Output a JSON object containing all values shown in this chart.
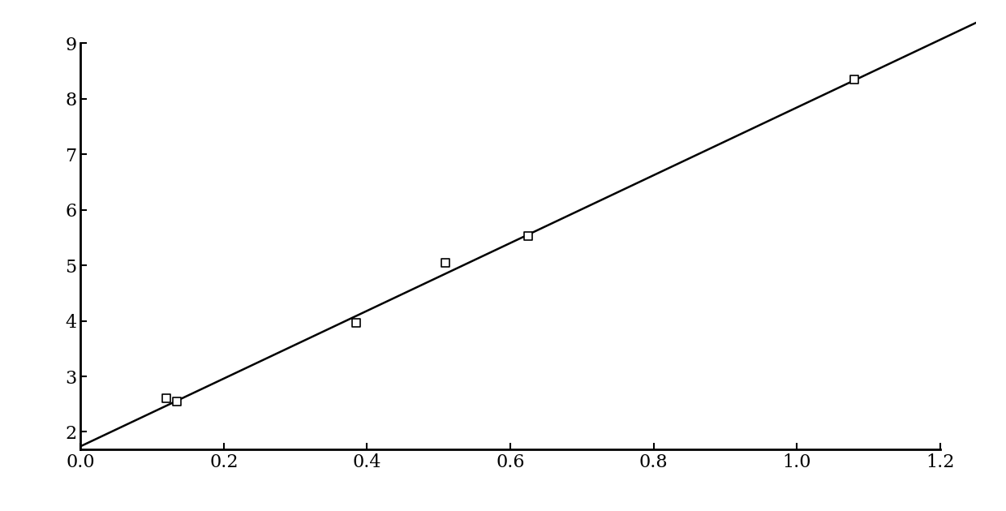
{
  "data_points_x": [
    0.12,
    0.135,
    0.385,
    0.51,
    0.625,
    1.08
  ],
  "data_points_y": [
    2.6,
    2.55,
    3.96,
    5.05,
    5.52,
    8.35
  ],
  "line_slope": 6.1,
  "line_intercept": 1.74,
  "xlim": [
    0.0,
    1.25
  ],
  "ylim": [
    1.68,
    9.5
  ],
  "xticks": [
    0.0,
    0.2,
    0.4,
    0.6,
    0.8,
    1.0,
    1.2
  ],
  "yticks": [
    2,
    3,
    4,
    5,
    6,
    7,
    8,
    9
  ],
  "xtick_labels": [
    "0.0",
    "0.2",
    "0.4",
    "0.6",
    "0.8",
    "1.0",
    "1.2"
  ],
  "ytick_labels": [
    "2",
    "3",
    "4",
    "5",
    "6",
    "7",
    "8",
    "9"
  ],
  "marker_size": 50,
  "line_color": "#000000",
  "marker_color": "#000000",
  "background_color": "#ffffff",
  "tick_fontsize": 16,
  "line_width": 1.8,
  "spine_linewidth": 2.0
}
